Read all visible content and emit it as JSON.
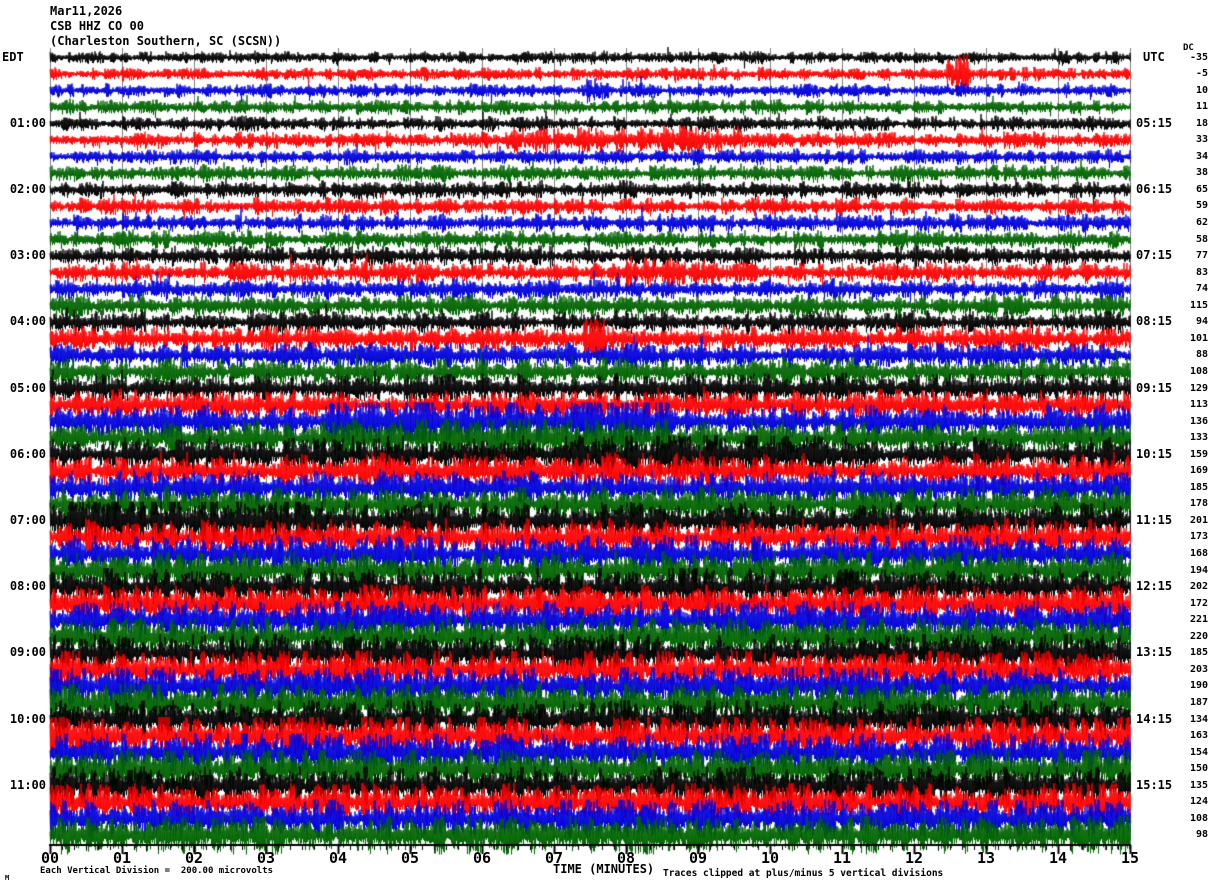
{
  "header": {
    "date": "Mar11,2026",
    "station": "CSB HHZ CO 00",
    "location": "(Charleston Southern, SC (SCSN))"
  },
  "axes": {
    "left_label": "EDT",
    "right_label": "UTC",
    "dc_label": "DC",
    "x_title": "TIME (MINUTES)",
    "x_ticks": [
      "00",
      "01",
      "02",
      "03",
      "04",
      "05",
      "06",
      "07",
      "08",
      "09",
      "10",
      "11",
      "12",
      "13",
      "14",
      "15"
    ],
    "footer_left": "Each Vertical Division =  200.00 microvolts",
    "footer_right": "Traces clipped at plus/minus 5 vertical divisions",
    "watermark": "M"
  },
  "chart_data": {
    "type": "line",
    "title": "CSB HHZ CO 00 helicorder, Mar11,2026, Charleston Southern, SC (SCSN)",
    "xlabel": "TIME (MINUTES)",
    "x_range_minutes": [
      0,
      15
    ],
    "minutes_per_line": 15,
    "grid": true,
    "vertical_division_microvolts": 200.0,
    "clip_divisions": 5,
    "colors": {
      "black": "#000000",
      "red": "#ff0000",
      "blue": "#0000dd",
      "green": "#006400",
      "grid": "#808080",
      "axis": "#000000"
    },
    "color_cycle": [
      "black",
      "red",
      "blue",
      "green"
    ],
    "traces": [
      {
        "edt": "",
        "utc": "",
        "dc": -35,
        "color": "black",
        "amp": 4.2
      },
      {
        "edt": "",
        "utc": "",
        "dc": -5,
        "color": "red",
        "amp": 4.4
      },
      {
        "edt": "",
        "utc": "",
        "dc": 10,
        "color": "blue",
        "amp": 4.6
      },
      {
        "edt": "",
        "utc": "",
        "dc": 11,
        "color": "green",
        "amp": 4.8
      },
      {
        "edt": "01:00",
        "utc": "05:15",
        "dc": 18,
        "color": "black",
        "amp": 5.0
      },
      {
        "edt": "",
        "utc": "",
        "dc": 33,
        "color": "red",
        "amp": 5.4
      },
      {
        "edt": "",
        "utc": "",
        "dc": 34,
        "color": "blue",
        "amp": 5.2
      },
      {
        "edt": "",
        "utc": "",
        "dc": 38,
        "color": "green",
        "amp": 5.6
      },
      {
        "edt": "02:00",
        "utc": "06:15",
        "dc": 65,
        "color": "black",
        "amp": 5.8
      },
      {
        "edt": "",
        "utc": "",
        "dc": 59,
        "color": "red",
        "amp": 5.8
      },
      {
        "edt": "",
        "utc": "",
        "dc": 62,
        "color": "blue",
        "amp": 6.0
      },
      {
        "edt": "",
        "utc": "",
        "dc": 58,
        "color": "green",
        "amp": 6.2
      },
      {
        "edt": "03:00",
        "utc": "07:15",
        "dc": 77,
        "color": "black",
        "amp": 6.6
      },
      {
        "edt": "",
        "utc": "",
        "dc": 83,
        "color": "red",
        "amp": 6.8
      },
      {
        "edt": "",
        "utc": "",
        "dc": 74,
        "color": "blue",
        "amp": 7.0
      },
      {
        "edt": "",
        "utc": "",
        "dc": 115,
        "color": "green",
        "amp": 7.4
      },
      {
        "edt": "04:00",
        "utc": "08:15",
        "dc": 94,
        "color": "black",
        "amp": 7.8
      },
      {
        "edt": "",
        "utc": "",
        "dc": 101,
        "color": "red",
        "amp": 8.2
      },
      {
        "edt": "",
        "utc": "",
        "dc": 88,
        "color": "blue",
        "amp": 8.6
      },
      {
        "edt": "",
        "utc": "",
        "dc": 108,
        "color": "green",
        "amp": 9.0
      },
      {
        "edt": "05:00",
        "utc": "09:15",
        "dc": 129,
        "color": "black",
        "amp": 9.6
      },
      {
        "edt": "",
        "utc": "",
        "dc": 113,
        "color": "red",
        "amp": 10.0
      },
      {
        "edt": "",
        "utc": "",
        "dc": 136,
        "color": "blue",
        "amp": 10.4
      },
      {
        "edt": "",
        "utc": "",
        "dc": 133,
        "color": "green",
        "amp": 10.6
      },
      {
        "edt": "06:00",
        "utc": "10:15",
        "dc": 159,
        "color": "black",
        "amp": 11.0
      },
      {
        "edt": "",
        "utc": "",
        "dc": 169,
        "color": "red",
        "amp": 11.2
      },
      {
        "edt": "",
        "utc": "",
        "dc": 185,
        "color": "blue",
        "amp": 11.4
      },
      {
        "edt": "",
        "utc": "",
        "dc": 178,
        "color": "green",
        "amp": 11.6
      },
      {
        "edt": "07:00",
        "utc": "11:15",
        "dc": 201,
        "color": "black",
        "amp": 12.0
      },
      {
        "edt": "",
        "utc": "",
        "dc": 173,
        "color": "red",
        "amp": 12.0
      },
      {
        "edt": "",
        "utc": "",
        "dc": 168,
        "color": "blue",
        "amp": 12.2
      },
      {
        "edt": "",
        "utc": "",
        "dc": 194,
        "color": "green",
        "amp": 12.4
      },
      {
        "edt": "08:00",
        "utc": "12:15",
        "dc": 202,
        "color": "black",
        "amp": 12.6
      },
      {
        "edt": "",
        "utc": "",
        "dc": 172,
        "color": "red",
        "amp": 12.6
      },
      {
        "edt": "",
        "utc": "",
        "dc": 221,
        "color": "blue",
        "amp": 13.0
      },
      {
        "edt": "",
        "utc": "",
        "dc": 220,
        "color": "green",
        "amp": 13.0
      },
      {
        "edt": "09:00",
        "utc": "13:15",
        "dc": 185,
        "color": "black",
        "amp": 13.2
      },
      {
        "edt": "",
        "utc": "",
        "dc": 203,
        "color": "red",
        "amp": 13.4
      },
      {
        "edt": "",
        "utc": "",
        "dc": 190,
        "color": "blue",
        "amp": 13.4
      },
      {
        "edt": "",
        "utc": "",
        "dc": 187,
        "color": "green",
        "amp": 13.6
      },
      {
        "edt": "10:00",
        "utc": "14:15",
        "dc": 134,
        "color": "black",
        "amp": 13.6
      },
      {
        "edt": "",
        "utc": "",
        "dc": 163,
        "color": "red",
        "amp": 13.6
      },
      {
        "edt": "",
        "utc": "",
        "dc": 154,
        "color": "blue",
        "amp": 13.8
      },
      {
        "edt": "",
        "utc": "",
        "dc": 150,
        "color": "green",
        "amp": 13.8
      },
      {
        "edt": "11:00",
        "utc": "15:15",
        "dc": 135,
        "color": "black",
        "amp": 13.8
      },
      {
        "edt": "",
        "utc": "",
        "dc": 124,
        "color": "red",
        "amp": 13.6
      },
      {
        "edt": "",
        "utc": "",
        "dc": 108,
        "color": "blue",
        "amp": 13.4
      },
      {
        "edt": "",
        "utc": "",
        "dc": 98,
        "color": "green",
        "amp": 13.2
      }
    ],
    "events": [
      {
        "trace": 1,
        "start": 12.45,
        "end": 12.75,
        "gain": 3.2
      },
      {
        "trace": 2,
        "start": 7.45,
        "end": 7.75,
        "gain": 2.0
      },
      {
        "trace": 5,
        "start": 6.3,
        "end": 9.6,
        "gain": 1.7
      },
      {
        "trace": 13,
        "start": 7.9,
        "end": 9.3,
        "gain": 1.5
      },
      {
        "trace": 17,
        "start": 7.4,
        "end": 7.7,
        "gain": 2.2
      },
      {
        "trace": 22,
        "start": 3.8,
        "end": 8.6,
        "gain": 1.7
      },
      {
        "trace": 23,
        "start": 3.8,
        "end": 8.6,
        "gain": 1.4
      },
      {
        "trace": 24,
        "start": 7.3,
        "end": 10.9,
        "gain": 1.5
      },
      {
        "trace": 28,
        "start": 0.2,
        "end": 3.6,
        "gain": 1.5
      }
    ]
  }
}
